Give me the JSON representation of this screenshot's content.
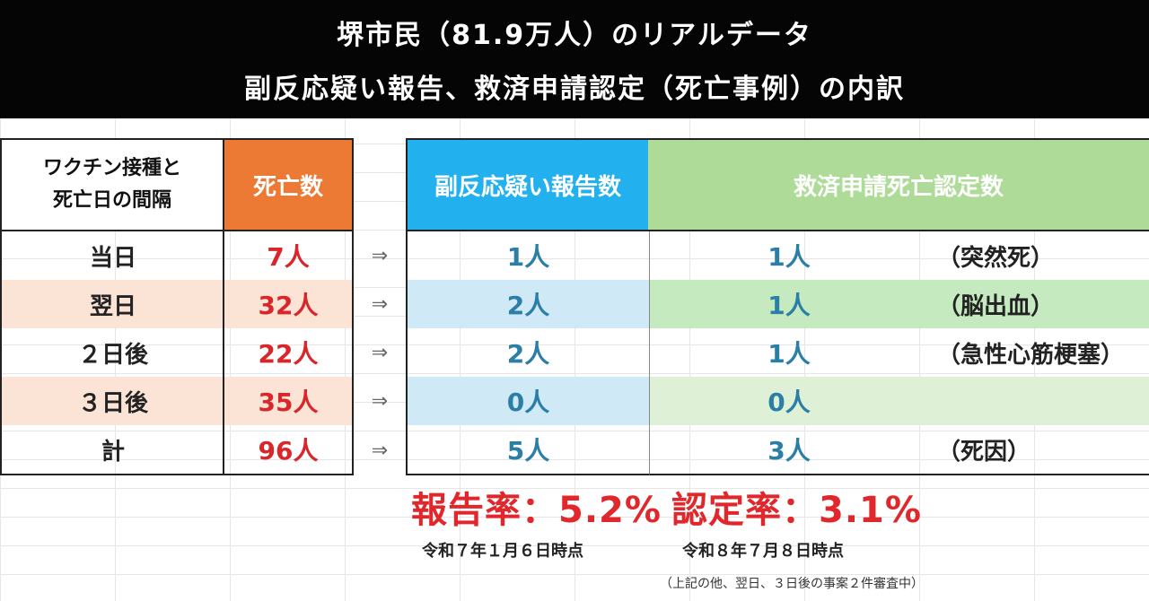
{
  "title": {
    "line1": "堺市民（81.9万人）のリアルデータ",
    "line2": "副反応疑い報告、救済申請認定（死亡事例）の内訳"
  },
  "table": {
    "headers": {
      "interval": "ワクチン接種と\n死亡日の間隔",
      "deaths": "死亡数",
      "reports": "副反応疑い報告数",
      "certified": "救済申請死亡認定数"
    },
    "arrow": "⇒",
    "rows": [
      {
        "interval": "当日",
        "deaths": "7人",
        "reports": "1人",
        "certified": "1人",
        "cause": "（突然死）"
      },
      {
        "interval": "翌日",
        "deaths": "32人",
        "reports": "2人",
        "certified": "1人",
        "cause": "（脳出血）"
      },
      {
        "interval": "２日後",
        "deaths": "22人",
        "reports": "2人",
        "certified": "1人",
        "cause": "（急性心筋梗塞）"
      },
      {
        "interval": "３日後",
        "deaths": "35人",
        "reports": "0人",
        "certified": "0人",
        "cause": ""
      },
      {
        "interval": "計",
        "deaths": "96人",
        "reports": "5人",
        "certified": "3人",
        "cause": "（死因）"
      }
    ],
    "colors": {
      "banner": "#050505",
      "death_header": "#ec7a34",
      "report_header": "#23b0ee",
      "cert_header": "#aedc98",
      "value_red": "#d8262a",
      "value_blue": "#2b7ea6"
    }
  },
  "footer": {
    "report_rate": "報告率：5.2%",
    "cert_rate": "認定率：3.1%",
    "report_date": "令和７年１月６日時点",
    "cert_date": "令和８年７月８日時点",
    "note": "（上記の他、翌日、３日後の事案２件審査中）"
  }
}
